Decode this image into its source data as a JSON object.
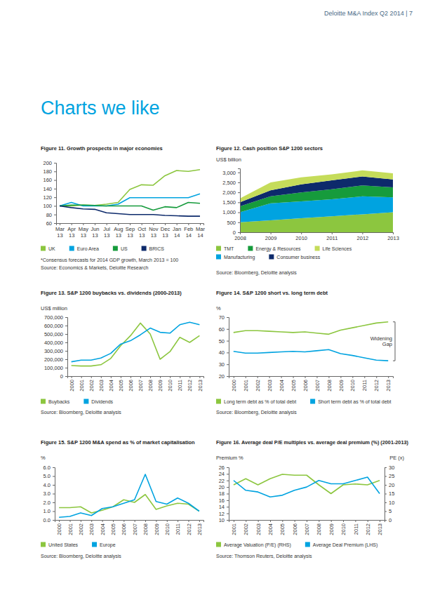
{
  "page": {
    "header": "Deloitte M&A Index Q2 2014 | 7",
    "title": "Charts we like"
  },
  "chart_data": [
    {
      "type": "line",
      "title": "Figure 11. Growth prospects in major economies",
      "categories": [
        "Mar 13",
        "Apr 13",
        "May 13",
        "Jun 13",
        "Jul 13",
        "Aug 13",
        "Sep 13",
        "Oct 13",
        "Nov 13",
        "Dec 13",
        "Jan 14",
        "Feb 14",
        "Mar 14"
      ],
      "series": [
        {
          "name": "UK",
          "color": "#8cc63f",
          "values": [
            100,
            100,
            102,
            101,
            104,
            108,
            138,
            149,
            148,
            170,
            182,
            180,
            184
          ]
        },
        {
          "name": "Euro Area",
          "color": "#00a3e0",
          "values": [
            100,
            108,
            100,
            100,
            100,
            104,
            119,
            119,
            119,
            119,
            119,
            119,
            128
          ]
        },
        {
          "name": "US",
          "color": "#169b3c",
          "values": [
            100,
            102,
            102,
            101,
            100,
            100,
            100,
            100,
            90,
            98,
            96,
            108,
            106
          ]
        },
        {
          "name": "BRICS",
          "color": "#0d2a6b",
          "values": [
            100,
            96,
            93,
            92,
            84,
            82,
            80,
            80,
            80,
            78,
            77,
            76,
            76
          ]
        }
      ],
      "ylim": [
        60,
        200
      ],
      "yticks": [
        60,
        80,
        100,
        120,
        140,
        160,
        180,
        200
      ],
      "grid": false,
      "legend": "bottom",
      "footnote": "*Consensus forecasts for 2014 GDP growth, March 2013 = 100",
      "source": "Source: Economics & Markets, Deloitte Research"
    },
    {
      "type": "area",
      "stacked": true,
      "title": "Figure 12. Cash position S&P 1200 sectors",
      "y_label": "US$ billion",
      "categories": [
        "2008",
        "2009",
        "2010",
        "2011",
        "2012",
        "2013"
      ],
      "series": [
        {
          "name": "TMT",
          "color": "#8cc63f",
          "values": [
            500,
            600,
            700,
            800,
            900,
            1000
          ]
        },
        {
          "name": "Energy & Resources",
          "color": "#169b3c",
          "values": [
            300,
            350,
            450,
            500,
            550,
            500
          ]
        },
        {
          "name": "Life Sciences",
          "color": "#c5dc5a",
          "values": [
            200,
            400,
            350,
            300,
            300,
            300
          ]
        },
        {
          "name": "Manufacturing",
          "color": "#00a3e0",
          "values": [
            500,
            850,
            850,
            850,
            900,
            750
          ]
        },
        {
          "name": "Consumer business",
          "color": "#0d2a6b",
          "values": [
            200,
            300,
            400,
            450,
            450,
            400
          ]
        }
      ],
      "ylim": [
        0,
        3200
      ],
      "yticks": [
        0,
        500,
        {
          "value": 1000,
          "label": "1,000"
        },
        {
          "value": 1500,
          "label": "1,500"
        },
        {
          "value": 2000,
          "label": "2,000"
        },
        {
          "value": 2500,
          "label": "2,500"
        },
        {
          "value": 3000,
          "label": "3,000"
        }
      ],
      "grid": false,
      "legend": "bottom",
      "source": "Source: Bloomberg, Deloitte analysis"
    },
    {
      "type": "line",
      "title": "Figure 13. S&P 1200 buybacks vs. dividends (2000-2013)",
      "y_label": "US$ million",
      "categories": [
        "2000",
        "2001",
        "2002",
        "2003",
        "2004",
        "2005",
        "2006",
        "2007",
        "2008",
        "2009",
        "2010",
        "2011",
        "2012",
        "2013"
      ],
      "series": [
        {
          "name": "Buybacks",
          "color": "#8cc63f",
          "values": [
            125000,
            120000,
            120000,
            135000,
            210000,
            360000,
            480000,
            630000,
            500000,
            200000,
            290000,
            460000,
            400000,
            480000
          ]
        },
        {
          "name": "Dividends",
          "color": "#00a3e0",
          "values": [
            170000,
            190000,
            190000,
            215000,
            270000,
            380000,
            420000,
            490000,
            570000,
            520000,
            510000,
            610000,
            640000,
            610000
          ]
        }
      ],
      "ylim": [
        0,
        700000
      ],
      "yticks": [
        0,
        {
          "value": 100000,
          "label": "100,000"
        },
        {
          "value": 200000,
          "label": "200,000"
        },
        {
          "value": 300000,
          "label": "300,000"
        },
        {
          "value": 400000,
          "label": "400,000"
        },
        {
          "value": 500000,
          "label": "500,000"
        },
        {
          "value": 600000,
          "label": "600,000"
        },
        {
          "value": 700000,
          "label": "700,000"
        }
      ],
      "grid": false,
      "legend": "bottom",
      "source": "Source: Bloomberg, Deloitte analysis"
    },
    {
      "type": "line",
      "title": "Figure 14. S&P 1200 short vs. long term debt",
      "y_label": "%",
      "categories": [
        "2000",
        "2001",
        "2002",
        "2003",
        "2004",
        "2005",
        "2006",
        "2007",
        "2008",
        "2009",
        "2010",
        "2011",
        "2012",
        "2013"
      ],
      "series": [
        {
          "name": "Long term debt as % of total debt",
          "color": "#8cc63f",
          "values": [
            57,
            58.5,
            58.5,
            58,
            57.5,
            57,
            57.5,
            56.5,
            55.5,
            59,
            61,
            63,
            65,
            66
          ]
        },
        {
          "name": "Short term debt as % of total debt",
          "color": "#00a3e0",
          "values": [
            41,
            39.5,
            39.5,
            40,
            40.5,
            41,
            40.5,
            41.5,
            42.5,
            39,
            37.5,
            35.5,
            33.5,
            33
          ]
        }
      ],
      "ylim": [
        20,
        70
      ],
      "yticks": [
        20,
        30,
        40,
        50,
        60,
        70
      ],
      "grid": false,
      "legend": "bottom",
      "annotation": "Widening Gap",
      "source": "Source: Bloomberg, Deloitte analysis"
    },
    {
      "type": "line",
      "title": "Figure 15. S&P 1200 M&A spend as % of market capitalisation",
      "y_label": "%",
      "categories": [
        "2000",
        "2001",
        "2002",
        "2003",
        "2004",
        "2005",
        "2006",
        "2007",
        "2008",
        "2009",
        "2010",
        "2011",
        "2012",
        "2013"
      ],
      "series": [
        {
          "name": "United States",
          "color": "#8cc63f",
          "values": [
            1.4,
            1.4,
            1.5,
            0.8,
            1.1,
            1.5,
            2.3,
            2.0,
            2.9,
            1.2,
            1.6,
            1.9,
            1.8,
            1.0
          ]
        },
        {
          "name": "Europe",
          "color": "#00a3e0",
          "values": [
            0.3,
            0.4,
            0.8,
            0.5,
            1.3,
            1.5,
            1.9,
            2.3,
            5.2,
            2.1,
            1.8,
            2.5,
            1.9,
            1.0
          ]
        }
      ],
      "ylim": [
        0,
        6
      ],
      "yticks": [
        {
          "value": 0,
          "label": "0.0"
        },
        {
          "value": 1,
          "label": "1.0"
        },
        {
          "value": 2,
          "label": "2.0"
        },
        {
          "value": 3,
          "label": "3.0"
        },
        {
          "value": 4,
          "label": "4.0"
        },
        {
          "value": 5,
          "label": "5.0"
        },
        {
          "value": 6,
          "label": "6.0"
        }
      ],
      "grid": false,
      "legend": "bottom",
      "source": "Source: Bloomberg, Deloitte analysis"
    },
    {
      "type": "line",
      "title": "Figure 16. Average deal P/E multiples vs. average deal premium (%) (2001-2013)",
      "y_label": "Premium %",
      "y2_label": "PE (x)",
      "categories": [
        "2001",
        "2002",
        "2003",
        "2004",
        "2005",
        "2006",
        "2007",
        "2008",
        "2009",
        "2010",
        "2011",
        "2012",
        "2013"
      ],
      "series": [
        {
          "name": "Average Valuation (P/E) (RHS)",
          "color": "#8cc63f",
          "axis": "y2",
          "values": [
            20,
            23.5,
            20,
            23.5,
            26,
            25.5,
            25.5,
            20,
            15,
            20,
            20.5,
            20,
            22.5
          ]
        },
        {
          "name": "Average Deal Premium (LHS)",
          "color": "#00a3e0",
          "values": [
            22,
            19,
            18.5,
            17,
            17.5,
            19,
            20,
            22,
            21,
            21,
            22,
            23,
            18
          ]
        }
      ],
      "ylim": [
        10,
        26
      ],
      "yticks": [
        10,
        12,
        14,
        16,
        18,
        20,
        22,
        24,
        26
      ],
      "y2lim": [
        0,
        30
      ],
      "y2ticks": [
        0,
        5,
        10,
        15,
        20,
        25,
        30
      ],
      "grid": false,
      "legend": "bottom",
      "source": "Source: Thomson Reuters, Deloitte analysis"
    }
  ]
}
